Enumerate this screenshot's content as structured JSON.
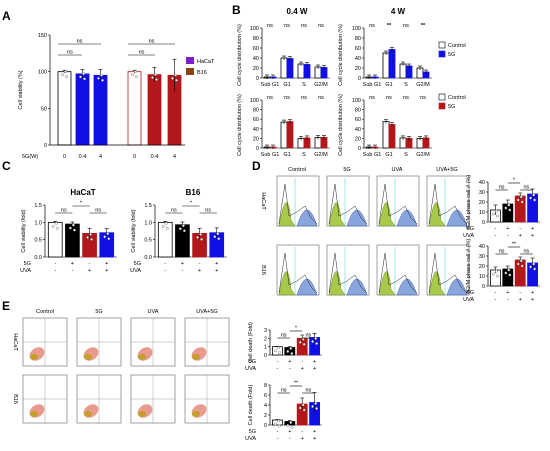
{
  "panel_labels": [
    "A",
    "B",
    "C",
    "D",
    "E"
  ],
  "colors": {
    "black": "#000000",
    "blue": "#1010e6",
    "red": "#b2181b",
    "purple": "#7b1fc8",
    "brown": "#8b4513",
    "white": "#ffffff",
    "flow_green": "#a8c94a",
    "flow_blue": "#6b8fd6",
    "dot_red": "#d02020"
  },
  "chart_data": [
    {
      "id": "A",
      "type": "bar",
      "ylabel": "Cell viability (%)",
      "ylim": [
        0,
        150
      ],
      "yticks": [
        "0",
        "50",
        "100",
        "150"
      ],
      "xlabel": "5G(W)",
      "categories": [
        "0",
        "0.4",
        "4",
        "0",
        "0.4",
        "4"
      ],
      "values": [
        100,
        97,
        95,
        100,
        96,
        95
      ],
      "errors": [
        2,
        6,
        8,
        2,
        10,
        22
      ],
      "fills": [
        "#ffffff",
        "#1010e6",
        "#1010e6",
        "#ffffff",
        "#b2181b",
        "#b2181b"
      ],
      "strokes": [
        "#000000",
        "#1010e6",
        "#1010e6",
        "#b2181b",
        "#b2181b",
        "#b2181b"
      ],
      "legend": [
        {
          "name": "HaCaT",
          "color": "#7b1fc8"
        },
        {
          "name": "B16",
          "color": "#8b4513"
        }
      ],
      "significance": [
        "ns",
        "ns",
        "ns",
        "ns"
      ]
    },
    {
      "id": "B",
      "type": "bar",
      "group_titles": [
        "0.4 W",
        "4 W"
      ],
      "ylabel": "Cell cycle distribution (%)",
      "ylim": [
        0,
        100
      ],
      "yticks": [
        "0",
        "20",
        "40",
        "60",
        "80",
        "100"
      ],
      "categories": [
        "Sub G1",
        "G1",
        "S",
        "G2/M"
      ],
      "legend_top": [
        {
          "name": "Control",
          "color": "#ffffff"
        },
        {
          "name": "5G",
          "color": "#1010e6"
        }
      ],
      "legend_bottom": [
        {
          "name": "Control",
          "color": "#ffffff"
        },
        {
          "name": "5G",
          "color": "#b2181b"
        }
      ],
      "subplots": [
        {
          "control": [
            2,
            40,
            28,
            22
          ],
          "treated": [
            2,
            39,
            27,
            21
          ],
          "sig": [
            "ns",
            "ns",
            "ns",
            "ns"
          ]
        },
        {
          "control": [
            2,
            50,
            28,
            20
          ],
          "treated": [
            2,
            57,
            24,
            12
          ],
          "sig": [
            "ns",
            "**",
            "ns",
            "**"
          ]
        },
        {
          "control": [
            2,
            54,
            20,
            22
          ],
          "treated": [
            2,
            55,
            21,
            22
          ],
          "sig": [
            "ns",
            "ns",
            "ns",
            "ns"
          ]
        },
        {
          "control": [
            2,
            55,
            21,
            20
          ],
          "treated": [
            2,
            49,
            20,
            21
          ],
          "sig": [
            "ns",
            "ns",
            "ns",
            "ns"
          ]
        }
      ]
    },
    {
      "id": "C",
      "type": "bar",
      "ylabel": "Cell viability (fold)",
      "ylim": [
        0,
        1.5
      ],
      "yticks": [
        "0.0",
        "0.5",
        "1.0",
        "1.5"
      ],
      "row_labels": [
        "5G",
        "UVA"
      ],
      "conditions_5g": [
        "-",
        "+",
        "-",
        "+"
      ],
      "conditions_uva": [
        "-",
        "-",
        "+",
        "+"
      ],
      "plots": [
        {
          "title": "HaCaT",
          "values": [
            1.0,
            0.95,
            0.68,
            0.7
          ],
          "errors": [
            0.03,
            0.06,
            0.15,
            0.12
          ],
          "sig": [
            "ns",
            "*",
            "ns"
          ]
        },
        {
          "title": "B16",
          "values": [
            1.0,
            0.93,
            0.68,
            0.7
          ],
          "errors": [
            0.03,
            0.08,
            0.15,
            0.14
          ],
          "sig": [
            "ns",
            "*",
            "ns"
          ]
        }
      ],
      "fills": [
        "#ffffff",
        "#000000",
        "#b2181b",
        "#1010e6"
      ]
    },
    {
      "id": "D",
      "type": "bar",
      "col_titles": [
        "Control",
        "5G",
        "UVA",
        "UVA+5G"
      ],
      "row_titles": [
        "HaCaT",
        "B16"
      ],
      "ylabel": "G2/M phase cell # (%)",
      "ylim": [
        0,
        40
      ],
      "yticks": [
        "0",
        "10",
        "20",
        "30",
        "40"
      ],
      "row_labels": [
        "5G",
        "UVA"
      ],
      "conditions_5g": [
        "-",
        "+",
        "-",
        "+"
      ],
      "conditions_uva": [
        "-",
        "-",
        "+",
        "+"
      ],
      "plots": [
        {
          "values": [
            12,
            18,
            26,
            28
          ],
          "errors": [
            5,
            4,
            3,
            5
          ],
          "sig": [
            "ns",
            "*",
            "ns"
          ]
        },
        {
          "values": [
            16,
            17,
            26,
            23
          ],
          "errors": [
            3,
            3,
            3,
            5
          ],
          "sig": [
            "ns",
            "**",
            "ns"
          ]
        }
      ],
      "fills": [
        "#ffffff",
        "#000000",
        "#b2181b",
        "#1010e6"
      ]
    },
    {
      "id": "E",
      "type": "bar",
      "col_titles": [
        "Control",
        "5G",
        "UVA",
        "UVA+5G"
      ],
      "row_titles": [
        "HaCaT",
        "B16"
      ],
      "ylabel": "Cell death (Fold)",
      "row_labels": [
        "5G",
        "UVA"
      ],
      "conditions_5g": [
        "-",
        "+",
        "-",
        "+"
      ],
      "conditions_uva": [
        "-",
        "-",
        "+",
        "+"
      ],
      "plots": [
        {
          "ylim": [
            0,
            3
          ],
          "yticks": [
            "0",
            "1",
            "2",
            "3"
          ],
          "values": [
            1.0,
            0.9,
            2.0,
            2.1
          ],
          "errors": [
            0.05,
            0.1,
            0.4,
            0.5
          ],
          "sig": [
            "ns",
            "*",
            "ns"
          ]
        },
        {
          "ylim": [
            0,
            8
          ],
          "yticks": [
            "0",
            "2",
            "4",
            "6",
            "8"
          ],
          "values": [
            1.0,
            0.7,
            4.2,
            4.5
          ],
          "errors": [
            0.1,
            0.2,
            1.2,
            2.0
          ],
          "sig": [
            "ns",
            "**",
            "ns"
          ]
        }
      ],
      "fills": [
        "#ffffff",
        "#000000",
        "#b2181b",
        "#1010e6"
      ]
    }
  ]
}
